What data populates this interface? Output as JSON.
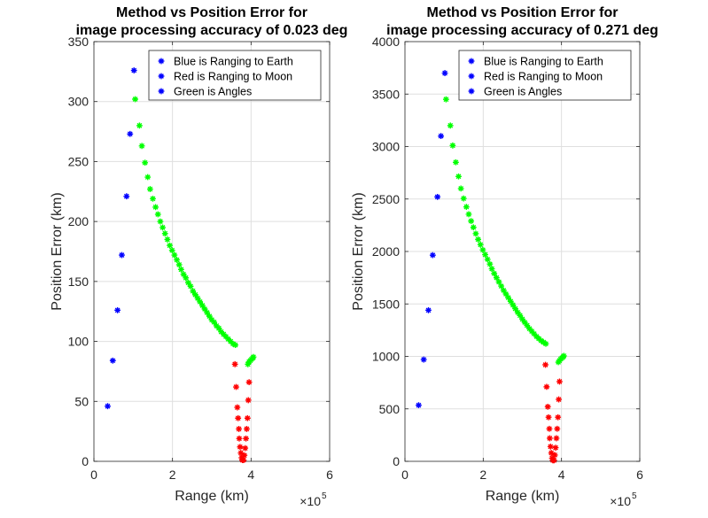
{
  "chart_data": [
    {
      "type": "scatter",
      "title": [
        "Method vs Position Error for",
        "image processing accuracy of 0.023 deg"
      ],
      "xlabel": "Range (km)",
      "ylabel": "Position Error (km)",
      "x_exponent_base": "×10",
      "x_exponent_power": "5",
      "x_scale": 100000,
      "xlim": [
        0,
        600000
      ],
      "ylim": [
        0,
        350
      ],
      "xticks": [
        0,
        200000,
        400000,
        600000
      ],
      "xtick_labels": [
        "0",
        "2",
        "4",
        "6"
      ],
      "yticks": [
        0,
        50,
        100,
        150,
        200,
        250,
        300,
        350
      ],
      "ytick_labels": [
        "0",
        "50",
        "100",
        "150",
        "200",
        "250",
        "300",
        "350"
      ],
      "grid": true,
      "legend_position": "top-right",
      "legend": [
        "Blue is Ranging to Earth",
        "Red is Ranging to Moon",
        "Green is Angles"
      ],
      "legend_marker_color": "#0000ff",
      "marker": "*",
      "series": [
        {
          "name": "Blue is Ranging to Earth",
          "color": "#0000ff",
          "points": [
            [
              35000,
              46
            ],
            [
              48000,
              84
            ],
            [
              60000,
              126
            ],
            [
              71000,
              172
            ],
            [
              83000,
              221
            ],
            [
              92000,
              273
            ],
            [
              102000,
              326
            ]
          ]
        },
        {
          "name": "Red is Ranging to Moon",
          "color": "#ff0000",
          "points": [
            [
              359000,
              81
            ],
            [
              362000,
              62
            ],
            [
              365000,
              45
            ],
            [
              367000,
              36
            ],
            [
              369000,
              27
            ],
            [
              370000,
              19
            ],
            [
              372000,
              12
            ],
            [
              374000,
              7
            ],
            [
              376000,
              3
            ],
            [
              378000,
              1
            ],
            [
              381000,
              1
            ],
            [
              383000,
              5
            ],
            [
              385000,
              11
            ],
            [
              387000,
              19
            ],
            [
              389000,
              27
            ],
            [
              391000,
              36
            ],
            [
              393000,
              51
            ],
            [
              395000,
              66
            ]
          ]
        },
        {
          "name": "Green is Angles",
          "color": "#00ff00",
          "points": [
            [
              105000,
              302
            ],
            [
              116000,
              280
            ],
            [
              122000,
              263
            ],
            [
              130000,
              249
            ],
            [
              137000,
              237
            ],
            [
              143000,
              227
            ],
            [
              150000,
              219
            ],
            [
              157000,
              212
            ],
            [
              163000,
              206
            ],
            [
              169000,
              200
            ],
            [
              175000,
              195
            ],
            [
              181000,
              190
            ],
            [
              187000,
              185
            ],
            [
              193000,
              180
            ],
            [
              199000,
              176
            ],
            [
              205000,
              172
            ],
            [
              211000,
              168
            ],
            [
              217000,
              164
            ],
            [
              222000,
              160
            ],
            [
              228000,
              156
            ],
            [
              234000,
              153
            ],
            [
              240000,
              149
            ],
            [
              246000,
              146
            ],
            [
              252000,
              142
            ],
            [
              258000,
              139
            ],
            [
              264000,
              136
            ],
            [
              270000,
              133
            ],
            [
              276000,
              130
            ],
            [
              282000,
              127
            ],
            [
              288000,
              124
            ],
            [
              294000,
              121
            ],
            [
              300000,
              118
            ],
            [
              306000,
              116
            ],
            [
              312000,
              113
            ],
            [
              318000,
              111
            ],
            [
              324000,
              108
            ],
            [
              330000,
              106
            ],
            [
              336000,
              104
            ],
            [
              342000,
              102
            ],
            [
              348000,
              100
            ],
            [
              354000,
              98
            ],
            [
              360000,
              97
            ],
            [
              392000,
              81
            ],
            [
              395000,
              83
            ],
            [
              398000,
              84
            ],
            [
              401000,
              85
            ],
            [
              404000,
              86
            ],
            [
              406000,
              87
            ]
          ]
        }
      ]
    },
    {
      "type": "scatter",
      "title": [
        "Method vs Position Error for",
        "image processing accuracy of 0.271 deg"
      ],
      "xlabel": "Range (km)",
      "ylabel": "Position Error (km)",
      "x_exponent_base": "×10",
      "x_exponent_power": "5",
      "x_scale": 100000,
      "xlim": [
        0,
        600000
      ],
      "ylim": [
        0,
        4000
      ],
      "xticks": [
        0,
        200000,
        400000,
        600000
      ],
      "xtick_labels": [
        "0",
        "2",
        "4",
        "6"
      ],
      "yticks": [
        0,
        500,
        1000,
        1500,
        2000,
        2500,
        3000,
        3500,
        4000
      ],
      "ytick_labels": [
        "0",
        "500",
        "1000",
        "1500",
        "2000",
        "2500",
        "3000",
        "3500",
        "4000"
      ],
      "grid": true,
      "legend_position": "top-right",
      "legend": [
        "Blue is Ranging to Earth",
        "Red is Ranging to Moon",
        "Green is Angles"
      ],
      "legend_marker_color": "#0000ff",
      "marker": "*",
      "series": [
        {
          "name": "Blue is Ranging to Earth",
          "color": "#0000ff",
          "points": [
            [
              35000,
              535
            ],
            [
              48000,
              970
            ],
            [
              60000,
              1440
            ],
            [
              71000,
              1965
            ],
            [
              83000,
              2520
            ],
            [
              92000,
              3100
            ],
            [
              102000,
              3700
            ]
          ]
        },
        {
          "name": "Red is Ranging to Moon",
          "color": "#ff0000",
          "points": [
            [
              359000,
              920
            ],
            [
              362000,
              710
            ],
            [
              365000,
              520
            ],
            [
              367000,
              420
            ],
            [
              369000,
              310
            ],
            [
              370000,
              220
            ],
            [
              372000,
              140
            ],
            [
              374000,
              80
            ],
            [
              376000,
              30
            ],
            [
              378000,
              10
            ],
            [
              381000,
              10
            ],
            [
              383000,
              60
            ],
            [
              385000,
              130
            ],
            [
              387000,
              220
            ],
            [
              389000,
              310
            ],
            [
              391000,
              420
            ],
            [
              393000,
              590
            ],
            [
              395000,
              760
            ]
          ]
        },
        {
          "name": "Green is Angles",
          "color": "#00ff00",
          "points": [
            [
              105000,
              3450
            ],
            [
              116000,
              3200
            ],
            [
              122000,
              3010
            ],
            [
              130000,
              2850
            ],
            [
              137000,
              2715
            ],
            [
              143000,
              2600
            ],
            [
              150000,
              2505
            ],
            [
              157000,
              2425
            ],
            [
              163000,
              2355
            ],
            [
              169000,
              2290
            ],
            [
              175000,
              2230
            ],
            [
              181000,
              2170
            ],
            [
              187000,
              2115
            ],
            [
              193000,
              2065
            ],
            [
              199000,
              2015
            ],
            [
              205000,
              1970
            ],
            [
              211000,
              1925
            ],
            [
              217000,
              1880
            ],
            [
              222000,
              1835
            ],
            [
              228000,
              1790
            ],
            [
              234000,
              1750
            ],
            [
              240000,
              1710
            ],
            [
              246000,
              1670
            ],
            [
              252000,
              1630
            ],
            [
              258000,
              1595
            ],
            [
              264000,
              1560
            ],
            [
              270000,
              1525
            ],
            [
              276000,
              1490
            ],
            [
              282000,
              1455
            ],
            [
              288000,
              1420
            ],
            [
              294000,
              1390
            ],
            [
              300000,
              1355
            ],
            [
              306000,
              1325
            ],
            [
              312000,
              1295
            ],
            [
              318000,
              1265
            ],
            [
              324000,
              1240
            ],
            [
              330000,
              1215
            ],
            [
              336000,
              1190
            ],
            [
              342000,
              1170
            ],
            [
              348000,
              1150
            ],
            [
              354000,
              1135
            ],
            [
              360000,
              1120
            ],
            [
              392000,
              945
            ],
            [
              395000,
              960
            ],
            [
              398000,
              975
            ],
            [
              401000,
              985
            ],
            [
              404000,
              995
            ],
            [
              406000,
              1005
            ]
          ]
        }
      ]
    }
  ]
}
